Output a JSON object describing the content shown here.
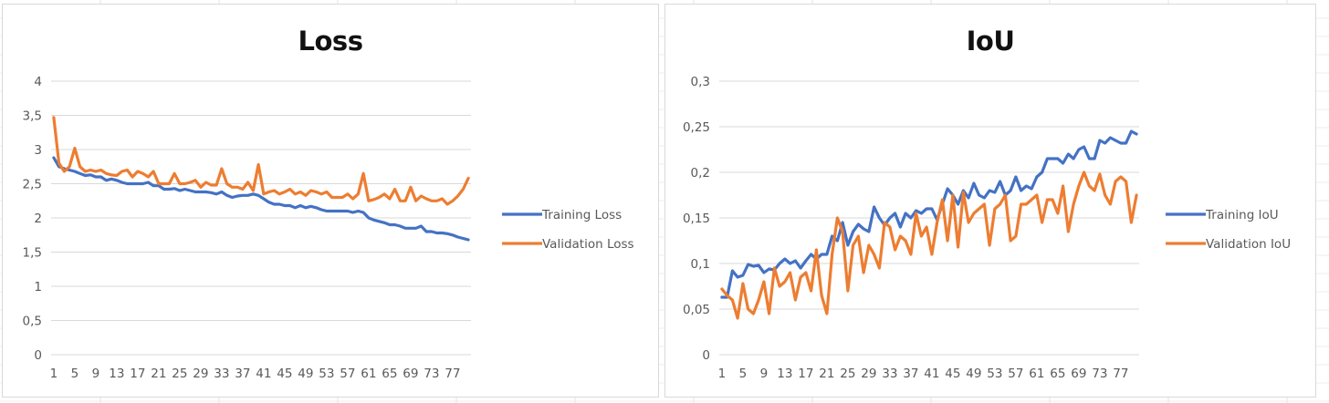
{
  "chart_data": [
    {
      "type": "line",
      "title": "Loss",
      "ylim": [
        0,
        4
      ],
      "y_ticks": [
        "0",
        "0,5",
        "1",
        "1,5",
        "2",
        "2,5",
        "3",
        "3,5",
        "4"
      ],
      "x": [
        1,
        2,
        3,
        4,
        5,
        6,
        7,
        8,
        9,
        10,
        11,
        12,
        13,
        14,
        15,
        16,
        17,
        18,
        19,
        20,
        21,
        22,
        23,
        24,
        25,
        26,
        27,
        28,
        29,
        30,
        31,
        32,
        33,
        34,
        35,
        36,
        37,
        38,
        39,
        40,
        41,
        42,
        43,
        44,
        45,
        46,
        47,
        48,
        49,
        50,
        51,
        52,
        53,
        54,
        55,
        56,
        57,
        58,
        59,
        60,
        61,
        62,
        63,
        64,
        65,
        66,
        67,
        68,
        69,
        70,
        71,
        72,
        73,
        74,
        75,
        76,
        77,
        78,
        79,
        80
      ],
      "x_tick_labels": [
        "1",
        "5",
        "9",
        "13",
        "17",
        "21",
        "25",
        "29",
        "33",
        "37",
        "41",
        "45",
        "49",
        "53",
        "57",
        "61",
        "65",
        "69",
        "73",
        "77"
      ],
      "grid": "horizontal",
      "legend_position": "right",
      "series": [
        {
          "name": "Training Loss",
          "color": "#4472C4",
          "values": [
            2.88,
            2.75,
            2.72,
            2.7,
            2.68,
            2.65,
            2.62,
            2.63,
            2.6,
            2.6,
            2.55,
            2.57,
            2.55,
            2.52,
            2.5,
            2.5,
            2.5,
            2.5,
            2.52,
            2.47,
            2.47,
            2.42,
            2.42,
            2.43,
            2.4,
            2.42,
            2.4,
            2.38,
            2.38,
            2.38,
            2.37,
            2.35,
            2.38,
            2.33,
            2.3,
            2.32,
            2.33,
            2.33,
            2.35,
            2.33,
            2.28,
            2.23,
            2.2,
            2.2,
            2.18,
            2.18,
            2.15,
            2.18,
            2.15,
            2.17,
            2.15,
            2.12,
            2.1,
            2.1,
            2.1,
            2.1,
            2.1,
            2.08,
            2.1,
            2.08,
            2.0,
            1.97,
            1.95,
            1.93,
            1.9,
            1.9,
            1.88,
            1.85,
            1.85,
            1.85,
            1.88,
            1.8,
            1.8,
            1.78,
            1.78,
            1.77,
            1.75,
            1.72,
            1.7,
            1.68
          ]
        },
        {
          "name": "Validation Loss",
          "color": "#ED7D31",
          "values": [
            3.47,
            2.8,
            2.68,
            2.75,
            3.02,
            2.75,
            2.68,
            2.7,
            2.68,
            2.7,
            2.65,
            2.63,
            2.62,
            2.68,
            2.7,
            2.6,
            2.68,
            2.65,
            2.6,
            2.68,
            2.5,
            2.5,
            2.5,
            2.65,
            2.5,
            2.5,
            2.52,
            2.55,
            2.45,
            2.52,
            2.48,
            2.48,
            2.72,
            2.5,
            2.45,
            2.45,
            2.42,
            2.52,
            2.4,
            2.78,
            2.35,
            2.38,
            2.4,
            2.35,
            2.38,
            2.42,
            2.35,
            2.38,
            2.33,
            2.4,
            2.38,
            2.35,
            2.38,
            2.3,
            2.3,
            2.3,
            2.35,
            2.28,
            2.35,
            2.65,
            2.25,
            2.27,
            2.3,
            2.35,
            2.28,
            2.42,
            2.25,
            2.25,
            2.45,
            2.25,
            2.32,
            2.28,
            2.25,
            2.25,
            2.28,
            2.2,
            2.25,
            2.32,
            2.42,
            2.58
          ]
        }
      ]
    },
    {
      "type": "line",
      "title": "IoU",
      "ylim": [
        0,
        0.3
      ],
      "y_ticks": [
        "0",
        "0,05",
        "0,1",
        "0,15",
        "0,2",
        "0,25",
        "0,3"
      ],
      "x": [
        1,
        2,
        3,
        4,
        5,
        6,
        7,
        8,
        9,
        10,
        11,
        12,
        13,
        14,
        15,
        16,
        17,
        18,
        19,
        20,
        21,
        22,
        23,
        24,
        25,
        26,
        27,
        28,
        29,
        30,
        31,
        32,
        33,
        34,
        35,
        36,
        37,
        38,
        39,
        40,
        41,
        42,
        43,
        44,
        45,
        46,
        47,
        48,
        49,
        50,
        51,
        52,
        53,
        54,
        55,
        56,
        57,
        58,
        59,
        60,
        61,
        62,
        63,
        64,
        65,
        66,
        67,
        68,
        69,
        70,
        71,
        72,
        73,
        74,
        75,
        76,
        77,
        78,
        79,
        80
      ],
      "x_tick_labels": [
        "1",
        "5",
        "9",
        "13",
        "17",
        "21",
        "25",
        "29",
        "33",
        "37",
        "41",
        "45",
        "49",
        "53",
        "57",
        "61",
        "65",
        "69",
        "73",
        "77"
      ],
      "grid": "horizontal",
      "legend_position": "right",
      "series": [
        {
          "name": "Training IoU",
          "color": "#4472C4",
          "values": [
            0.063,
            0.063,
            0.092,
            0.085,
            0.087,
            0.099,
            0.097,
            0.098,
            0.09,
            0.094,
            0.093,
            0.1,
            0.105,
            0.1,
            0.103,
            0.095,
            0.103,
            0.11,
            0.105,
            0.11,
            0.11,
            0.13,
            0.125,
            0.145,
            0.12,
            0.135,
            0.143,
            0.138,
            0.135,
            0.162,
            0.15,
            0.142,
            0.15,
            0.155,
            0.14,
            0.155,
            0.15,
            0.158,
            0.155,
            0.16,
            0.16,
            0.148,
            0.165,
            0.182,
            0.175,
            0.165,
            0.18,
            0.172,
            0.188,
            0.175,
            0.172,
            0.18,
            0.178,
            0.19,
            0.175,
            0.18,
            0.195,
            0.18,
            0.185,
            0.182,
            0.195,
            0.2,
            0.215,
            0.215,
            0.215,
            0.21,
            0.22,
            0.215,
            0.225,
            0.228,
            0.215,
            0.215,
            0.235,
            0.232,
            0.238,
            0.235,
            0.232,
            0.232,
            0.245,
            0.242
          ]
        },
        {
          "name": "Validation IoU",
          "color": "#ED7D31",
          "values": [
            0.072,
            0.065,
            0.06,
            0.04,
            0.078,
            0.05,
            0.045,
            0.06,
            0.08,
            0.045,
            0.095,
            0.075,
            0.08,
            0.09,
            0.06,
            0.085,
            0.09,
            0.07,
            0.115,
            0.065,
            0.045,
            0.11,
            0.15,
            0.135,
            0.07,
            0.12,
            0.13,
            0.09,
            0.12,
            0.11,
            0.095,
            0.145,
            0.14,
            0.115,
            0.13,
            0.125,
            0.11,
            0.155,
            0.13,
            0.14,
            0.11,
            0.145,
            0.17,
            0.125,
            0.175,
            0.118,
            0.178,
            0.145,
            0.155,
            0.16,
            0.165,
            0.12,
            0.16,
            0.165,
            0.175,
            0.125,
            0.13,
            0.165,
            0.165,
            0.17,
            0.175,
            0.145,
            0.17,
            0.17,
            0.155,
            0.185,
            0.135,
            0.165,
            0.185,
            0.2,
            0.185,
            0.18,
            0.198,
            0.175,
            0.165,
            0.19,
            0.195,
            0.19,
            0.145,
            0.175
          ]
        }
      ]
    }
  ]
}
